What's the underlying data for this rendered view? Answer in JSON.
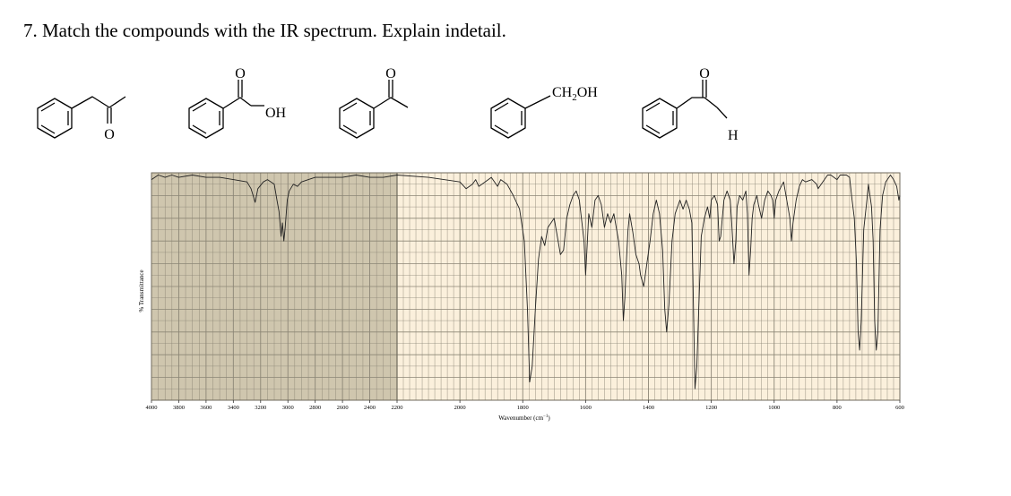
{
  "question": "7. Match the compounds with the IR spectrum. Explain indetail.",
  "structure_labels": {
    "oxygen": "O",
    "hydroxyl": "OH",
    "hydroxymethyl": "CH",
    "hydroxymethyl_sub": "2",
    "hydroxymethyl_tail": "OH",
    "hydrogen": "H"
  },
  "chart_data": {
    "type": "line",
    "ylabel": "% Transmittance",
    "xlabel": "Wavenumber (cm",
    "xlabel_sup": "−1",
    "xlabel_close": ")",
    "x_ticks": [
      "4000",
      "3800",
      "3600",
      "3400",
      "3200",
      "3000",
      "2800",
      "2600",
      "2400",
      "2200",
      "2000",
      "1800",
      "1600",
      "1400",
      "1200",
      "1000",
      "800",
      "600"
    ],
    "x_tick_values": [
      4000,
      3800,
      3600,
      3400,
      3200,
      3000,
      2800,
      2600,
      2400,
      2200,
      2000,
      1800,
      1600,
      1400,
      1200,
      1000,
      800,
      600
    ],
    "x_scale": "split: 4000-2200 compressed, 2200-600 expanded",
    "grid": true,
    "colors": {
      "high_range_bg": "#cfc6ae",
      "low_range_bg": "#fbf0dc",
      "grid": "#8c8676",
      "trace": "#222222"
    },
    "series": [
      {
        "points": [
          [
            4000,
            97
          ],
          [
            3950,
            99
          ],
          [
            3900,
            98
          ],
          [
            3850,
            99
          ],
          [
            3800,
            98
          ],
          [
            3700,
            99
          ],
          [
            3600,
            98
          ],
          [
            3500,
            98
          ],
          [
            3400,
            97
          ],
          [
            3300,
            96
          ],
          [
            3270,
            93
          ],
          [
            3240,
            87
          ],
          [
            3220,
            93
          ],
          [
            3180,
            96
          ],
          [
            3150,
            97
          ],
          [
            3100,
            95
          ],
          [
            3080,
            88
          ],
          [
            3065,
            83
          ],
          [
            3050,
            72
          ],
          [
            3040,
            78
          ],
          [
            3030,
            70
          ],
          [
            3020,
            76
          ],
          [
            3005,
            88
          ],
          [
            2990,
            92
          ],
          [
            2960,
            95
          ],
          [
            2930,
            94
          ],
          [
            2900,
            96
          ],
          [
            2850,
            97
          ],
          [
            2800,
            98
          ],
          [
            2700,
            98
          ],
          [
            2600,
            98
          ],
          [
            2500,
            99
          ],
          [
            2400,
            98
          ],
          [
            2300,
            98
          ],
          [
            2200,
            99
          ],
          [
            2100,
            98
          ],
          [
            2000,
            96
          ],
          [
            1980,
            93
          ],
          [
            1960,
            95
          ],
          [
            1950,
            97
          ],
          [
            1940,
            94
          ],
          [
            1920,
            96
          ],
          [
            1900,
            98
          ],
          [
            1880,
            94
          ],
          [
            1870,
            97
          ],
          [
            1850,
            95
          ],
          [
            1830,
            90
          ],
          [
            1810,
            84
          ],
          [
            1795,
            70
          ],
          [
            1785,
            40
          ],
          [
            1778,
            8
          ],
          [
            1770,
            15
          ],
          [
            1760,
            40
          ],
          [
            1750,
            62
          ],
          [
            1740,
            72
          ],
          [
            1730,
            68
          ],
          [
            1720,
            76
          ],
          [
            1700,
            80
          ],
          [
            1690,
            72
          ],
          [
            1680,
            64
          ],
          [
            1670,
            66
          ],
          [
            1660,
            80
          ],
          [
            1650,
            86
          ],
          [
            1640,
            90
          ],
          [
            1630,
            92
          ],
          [
            1620,
            88
          ],
          [
            1605,
            70
          ],
          [
            1600,
            55
          ],
          [
            1595,
            68
          ],
          [
            1590,
            82
          ],
          [
            1580,
            76
          ],
          [
            1570,
            88
          ],
          [
            1560,
            90
          ],
          [
            1550,
            86
          ],
          [
            1540,
            76
          ],
          [
            1530,
            82
          ],
          [
            1520,
            78
          ],
          [
            1510,
            82
          ],
          [
            1495,
            70
          ],
          [
            1485,
            55
          ],
          [
            1480,
            35
          ],
          [
            1475,
            45
          ],
          [
            1470,
            62
          ],
          [
            1465,
            75
          ],
          [
            1460,
            82
          ],
          [
            1450,
            74
          ],
          [
            1440,
            64
          ],
          [
            1430,
            60
          ],
          [
            1425,
            55
          ],
          [
            1415,
            50
          ],
          [
            1405,
            60
          ],
          [
            1395,
            70
          ],
          [
            1385,
            82
          ],
          [
            1375,
            88
          ],
          [
            1365,
            82
          ],
          [
            1355,
            66
          ],
          [
            1348,
            40
          ],
          [
            1342,
            30
          ],
          [
            1335,
            42
          ],
          [
            1325,
            70
          ],
          [
            1315,
            82
          ],
          [
            1300,
            88
          ],
          [
            1290,
            84
          ],
          [
            1280,
            88
          ],
          [
            1270,
            84
          ],
          [
            1262,
            78
          ],
          [
            1258,
            50
          ],
          [
            1252,
            5
          ],
          [
            1246,
            15
          ],
          [
            1240,
            40
          ],
          [
            1232,
            72
          ],
          [
            1222,
            80
          ],
          [
            1212,
            85
          ],
          [
            1205,
            80
          ],
          [
            1200,
            88
          ],
          [
            1190,
            90
          ],
          [
            1180,
            86
          ],
          [
            1175,
            70
          ],
          [
            1170,
            72
          ],
          [
            1160,
            88
          ],
          [
            1150,
            92
          ],
          [
            1140,
            88
          ],
          [
            1135,
            78
          ],
          [
            1128,
            60
          ],
          [
            1122,
            70
          ],
          [
            1118,
            85
          ],
          [
            1110,
            90
          ],
          [
            1100,
            88
          ],
          [
            1090,
            92
          ],
          [
            1085,
            82
          ],
          [
            1080,
            55
          ],
          [
            1075,
            66
          ],
          [
            1070,
            80
          ],
          [
            1065,
            86
          ],
          [
            1055,
            90
          ],
          [
            1050,
            86
          ],
          [
            1040,
            80
          ],
          [
            1030,
            88
          ],
          [
            1020,
            92
          ],
          [
            1010,
            90
          ],
          [
            1005,
            88
          ],
          [
            1000,
            80
          ],
          [
            995,
            88
          ],
          [
            985,
            92
          ],
          [
            970,
            96
          ],
          [
            950,
            80
          ],
          [
            945,
            70
          ],
          [
            940,
            78
          ],
          [
            930,
            88
          ],
          [
            920,
            94
          ],
          [
            910,
            97
          ],
          [
            900,
            96
          ],
          [
            880,
            97
          ],
          [
            865,
            95
          ],
          [
            860,
            93
          ],
          [
            840,
            97
          ],
          [
            830,
            99
          ],
          [
            820,
            99
          ],
          [
            800,
            97
          ],
          [
            790,
            99
          ],
          [
            770,
            99
          ],
          [
            760,
            98
          ],
          [
            752,
            88
          ],
          [
            745,
            80
          ],
          [
            738,
            60
          ],
          [
            733,
            30
          ],
          [
            728,
            22
          ],
          [
            723,
            35
          ],
          [
            715,
            75
          ],
          [
            705,
            88
          ],
          [
            700,
            95
          ],
          [
            690,
            85
          ],
          [
            685,
            70
          ],
          [
            680,
            35
          ],
          [
            675,
            22
          ],
          [
            670,
            30
          ],
          [
            663,
            75
          ],
          [
            655,
            90
          ],
          [
            645,
            96
          ],
          [
            630,
            99
          ],
          [
            620,
            97
          ],
          [
            610,
            94
          ],
          [
            603,
            88
          ],
          [
            600,
            90
          ]
        ]
      }
    ]
  }
}
